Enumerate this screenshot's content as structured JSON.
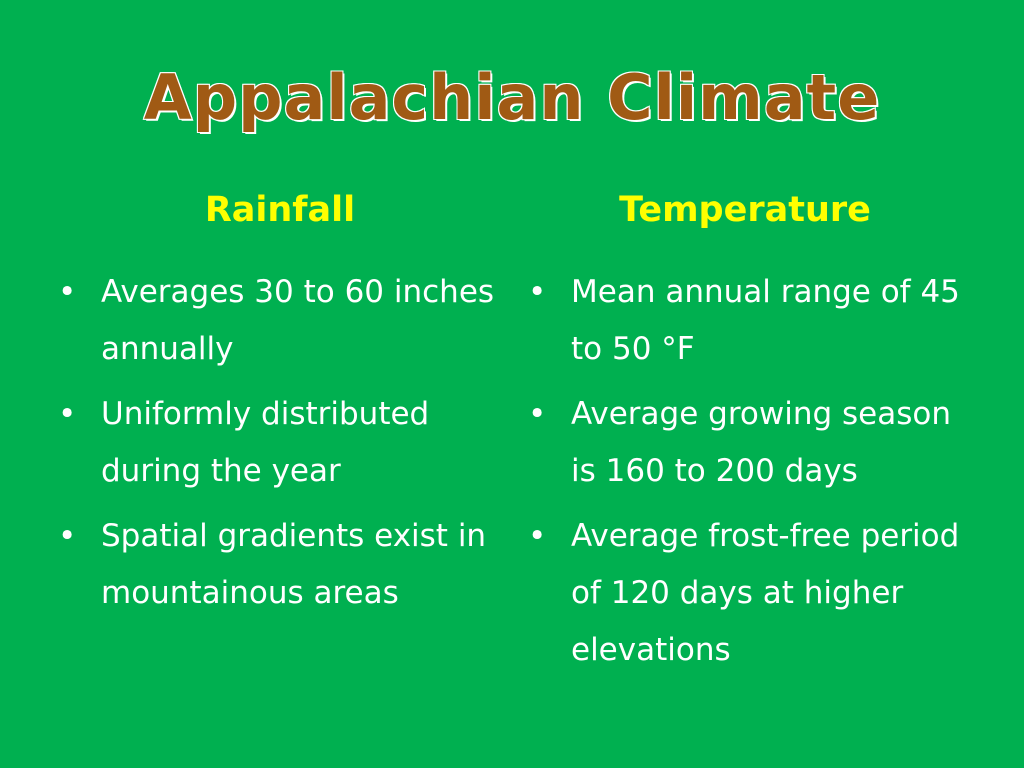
{
  "slide": {
    "title": "Appalachian Climate",
    "columns": [
      {
        "heading": "Rainfall",
        "bullets": [
          "Averages 30 to 60 inches annually",
          "Uniformly distributed during the year",
          "Spatial gradients exist in mountainous areas"
        ]
      },
      {
        "heading": "Temperature",
        "bullets": [
          "Mean annual range of 45 to 50 °F",
          "Average growing season is 160 to 200 days",
          "Average frost-free period of 120 days at higher elevations"
        ]
      }
    ],
    "bullet_glyph": "•",
    "colors": {
      "background": "#00b050",
      "title": "#a05a14",
      "heading": "#ffff00",
      "body": "#ffffff"
    }
  }
}
